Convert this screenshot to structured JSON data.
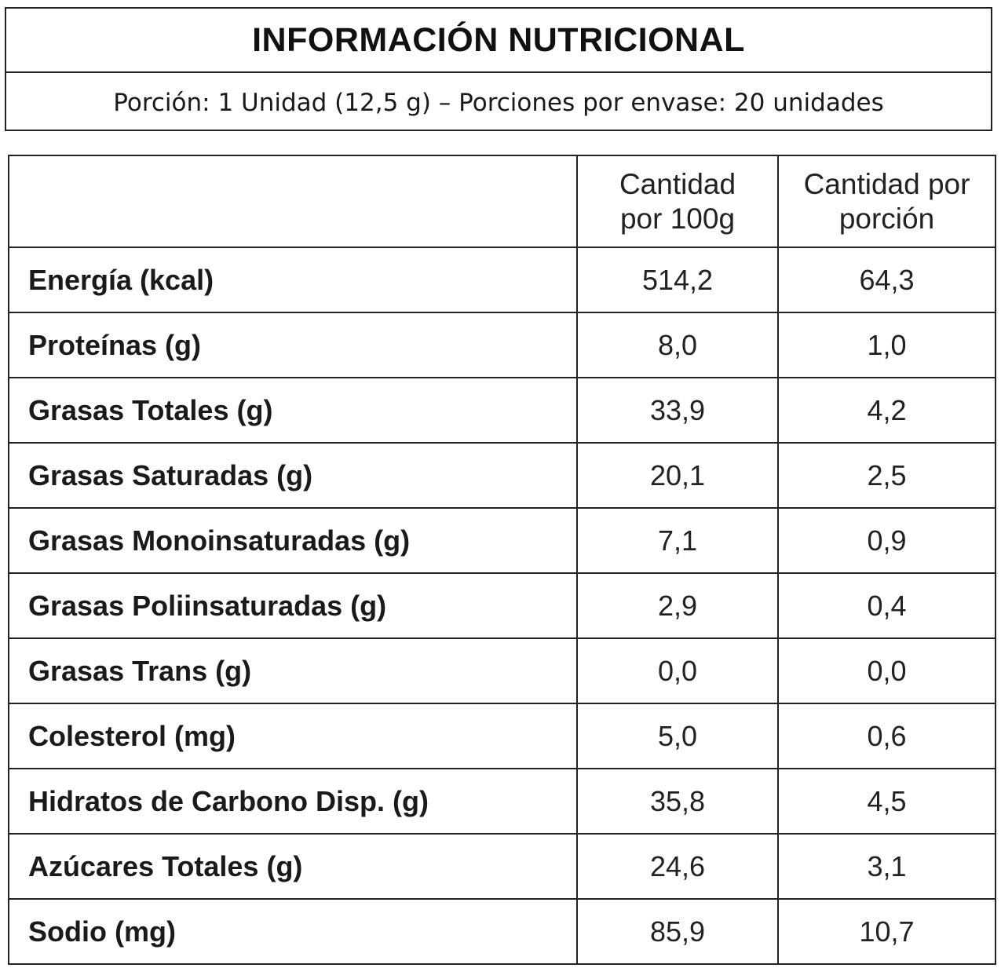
{
  "header": {
    "title": "INFORMACIÓN NUTRICIONAL",
    "subtitle": "Porción: 1 Unidad (12,5 g) – Porciones por envase: 20 unidades"
  },
  "table": {
    "columns": [
      "",
      "Cantidad por 100g",
      "Cantidad por porción"
    ],
    "column_lines": [
      [],
      [
        "Cantidad",
        "por 100g"
      ],
      [
        "Cantidad por",
        "porción"
      ]
    ],
    "rows": [
      {
        "name": "Energía (kcal)",
        "per100g": "514,2",
        "perPortion": "64,3"
      },
      {
        "name": "Proteínas (g)",
        "per100g": "8,0",
        "perPortion": "1,0"
      },
      {
        "name": "Grasas Totales (g)",
        "per100g": "33,9",
        "perPortion": "4,2"
      },
      {
        "name": "Grasas Saturadas (g)",
        "per100g": "20,1",
        "perPortion": "2,5"
      },
      {
        "name": "Grasas Monoinsaturadas (g)",
        "per100g": "7,1",
        "perPortion": "0,9"
      },
      {
        "name": "Grasas Poliinsaturadas (g)",
        "per100g": "2,9",
        "perPortion": "0,4"
      },
      {
        "name": "Grasas Trans (g)",
        "per100g": "0,0",
        "perPortion": "0,0"
      },
      {
        "name": "Colesterol (mg)",
        "per100g": "5,0",
        "perPortion": "0,6"
      },
      {
        "name": "Hidratos de Carbono Disp. (g)",
        "per100g": "35,8",
        "perPortion": "4,5"
      },
      {
        "name": "Azúcares Totales (g)",
        "per100g": "24,6",
        "perPortion": "3,1"
      },
      {
        "name": "Sodio (mg)",
        "per100g": "85,9",
        "perPortion": "10,7"
      }
    ]
  }
}
